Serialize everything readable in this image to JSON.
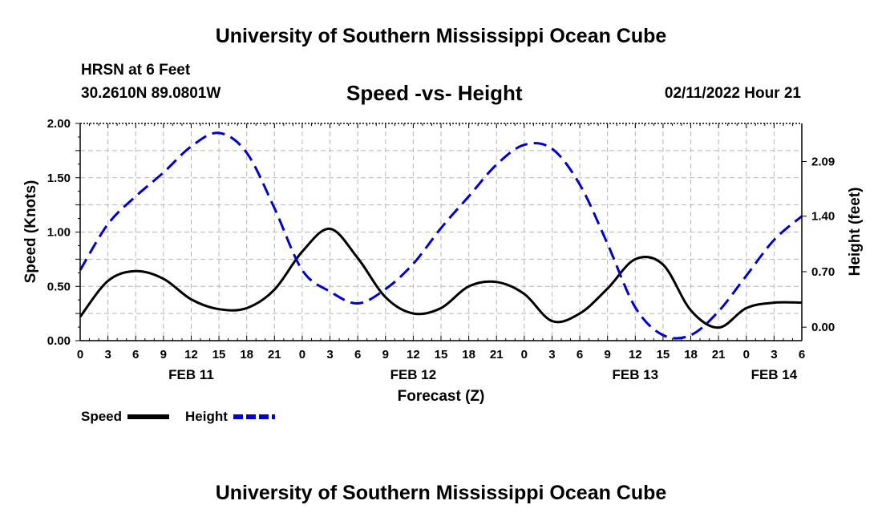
{
  "header": {
    "title": "University of Southern Mississippi Ocean Cube",
    "station": "HRSN at 6 Feet",
    "coordinates": "30.2610N  89.0801W",
    "chart_title": "Speed -vs- Height",
    "run_time": "02/11/2022 Hour 21"
  },
  "footer": {
    "title": "University of Southern Mississippi Ocean Cube"
  },
  "chart_data": {
    "type": "line",
    "title": "Speed -vs- Height",
    "xlabel": "Forecast (Z)",
    "ylabel_left": "Speed (Knots)",
    "ylabel_right": "Height (feet)",
    "x_range_hours": [
      0,
      78
    ],
    "ylim_left": [
      0,
      2.0
    ],
    "ylim_right": [
      -0.17,
      2.57
    ],
    "left_ticks": [
      {
        "value": 0,
        "label": "0.00"
      },
      {
        "value": 0.5,
        "label": "0.50"
      },
      {
        "value": 1.0,
        "label": "1.00"
      },
      {
        "value": 1.5,
        "label": "1.50"
      },
      {
        "value": 2.0,
        "label": "2.00"
      }
    ],
    "right_ticks": [
      {
        "value": 0.0,
        "label": "0.00"
      },
      {
        "value": 0.7,
        "label": "0.70"
      },
      {
        "value": 1.4,
        "label": "1.40"
      },
      {
        "value": 2.09,
        "label": "2.09"
      }
    ],
    "x_ticks": [
      "0",
      "3",
      "6",
      "9",
      "12",
      "15",
      "18",
      "21",
      "0",
      "3",
      "6",
      "9",
      "12",
      "15",
      "18",
      "21",
      "0",
      "3",
      "6",
      "9",
      "12",
      "15",
      "18",
      "21",
      "0",
      "3",
      "6"
    ],
    "date_labels": [
      {
        "hour": 12,
        "label": "FEB 11"
      },
      {
        "hour": 36,
        "label": "FEB 12"
      },
      {
        "hour": 60,
        "label": "FEB 13"
      },
      {
        "hour": 75,
        "label": "FEB 14"
      }
    ],
    "grid": true,
    "series": [
      {
        "name": "Speed",
        "axis": "left",
        "color": "#000000",
        "style": "solid",
        "x": [
          0,
          3,
          6,
          9,
          12,
          15,
          18,
          21,
          24,
          27,
          30,
          33,
          36,
          39,
          42,
          45,
          48,
          51,
          54,
          57,
          60,
          63,
          66,
          69,
          72,
          75,
          78
        ],
        "values": [
          0.22,
          0.55,
          0.64,
          0.57,
          0.38,
          0.29,
          0.3,
          0.47,
          0.82,
          1.03,
          0.76,
          0.4,
          0.25,
          0.3,
          0.5,
          0.54,
          0.43,
          0.18,
          0.25,
          0.48,
          0.75,
          0.7,
          0.28,
          0.12,
          0.3,
          0.35,
          0.35
        ]
      },
      {
        "name": "Height",
        "axis": "right",
        "color": "#0000cc",
        "style": "dashed",
        "x": [
          0,
          3,
          6,
          9,
          12,
          15,
          18,
          21,
          24,
          27,
          30,
          33,
          36,
          39,
          42,
          45,
          48,
          51,
          54,
          57,
          60,
          63,
          66,
          69,
          72,
          75,
          78
        ],
        "values": [
          0.72,
          1.3,
          1.65,
          1.95,
          2.28,
          2.45,
          2.2,
          1.5,
          0.72,
          0.45,
          0.3,
          0.48,
          0.8,
          1.25,
          1.65,
          2.05,
          2.3,
          2.25,
          1.8,
          1.05,
          0.25,
          -0.1,
          -0.1,
          0.2,
          0.65,
          1.1,
          1.4
        ]
      }
    ],
    "legend": {
      "placement": "bottom-left",
      "entries": [
        {
          "label": "Speed",
          "color": "#000000",
          "style": "solid"
        },
        {
          "label": "Height",
          "color": "#0000cc",
          "style": "dashed"
        }
      ]
    }
  }
}
